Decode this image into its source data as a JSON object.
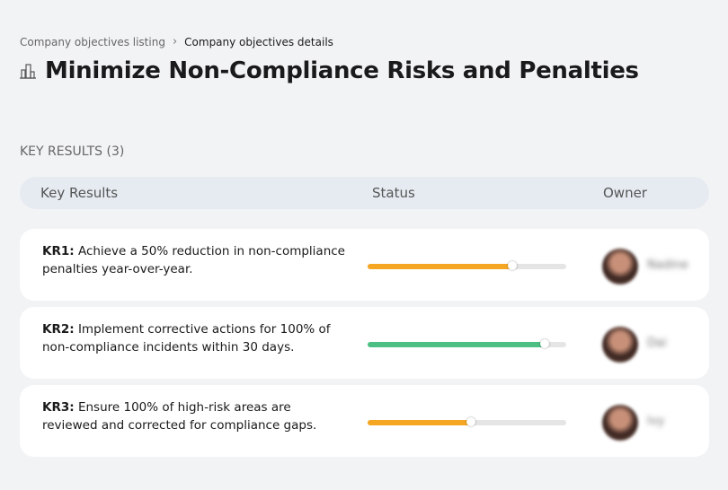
{
  "breadcrumbs": [
    "Company objectives listing",
    "Company objectives details"
  ],
  "title": "Minimize Non-Compliance Risks and Penalties",
  "section_label": "KEY RESULTS (3)",
  "table": {
    "columns": [
      "Key Results",
      "Status",
      "Owner"
    ],
    "rows": [
      {
        "id": "KR1:",
        "text": "Achieve a 50% reduction in non-compliance penalties year-over-year.",
        "progress": 73,
        "color": "#f5a623",
        "owner": "Nadine"
      },
      {
        "id": "KR2:",
        "text": "Implement corrective actions for 100% of non-compliance incidents within 30 days.",
        "progress": 89,
        "color": "#4cbf85",
        "owner": "Dai"
      },
      {
        "id": "KR3:",
        "text": "Ensure 100% of high-risk areas are reviewed and corrected for compliance gaps.",
        "progress": 52,
        "color": "#f5a623",
        "owner": "Ivy"
      }
    ]
  }
}
